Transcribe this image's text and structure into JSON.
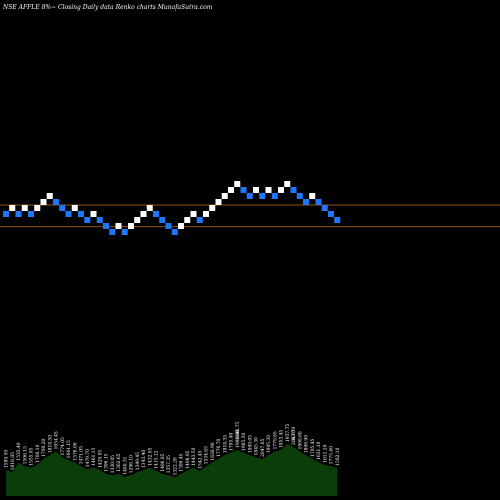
{
  "header": {
    "title": "NSE AFFLE 8%~ Closing Daily data Renko charts MunafaSutra.com"
  },
  "chart_data": {
    "type": "renko",
    "brick_size_label": "8%",
    "colors": {
      "up": "#ffffff",
      "down": "#1e78ff",
      "reference_line": "#c86e1e",
      "volume": "#0b3d0b",
      "background": "#000000"
    },
    "reference_lines": [
      1720,
      1430
    ],
    "bricks": [
      {
        "close": 1600,
        "dir": "down"
      },
      {
        "close": 1680,
        "dir": "up"
      },
      {
        "close": 1600,
        "dir": "down"
      },
      {
        "close": 1680,
        "dir": "up"
      },
      {
        "close": 1600,
        "dir": "down"
      },
      {
        "close": 1680,
        "dir": "up"
      },
      {
        "close": 1760,
        "dir": "up"
      },
      {
        "close": 1840,
        "dir": "up"
      },
      {
        "close": 1760,
        "dir": "down"
      },
      {
        "close": 1680,
        "dir": "down"
      },
      {
        "close": 1600,
        "dir": "down"
      },
      {
        "close": 1680,
        "dir": "up"
      },
      {
        "close": 1600,
        "dir": "down"
      },
      {
        "close": 1520,
        "dir": "down"
      },
      {
        "close": 1600,
        "dir": "up"
      },
      {
        "close": 1520,
        "dir": "down"
      },
      {
        "close": 1440,
        "dir": "down"
      },
      {
        "close": 1360,
        "dir": "down"
      },
      {
        "close": 1440,
        "dir": "up"
      },
      {
        "close": 1360,
        "dir": "down"
      },
      {
        "close": 1440,
        "dir": "up"
      },
      {
        "close": 1520,
        "dir": "up"
      },
      {
        "close": 1600,
        "dir": "up"
      },
      {
        "close": 1680,
        "dir": "up"
      },
      {
        "close": 1600,
        "dir": "down"
      },
      {
        "close": 1520,
        "dir": "down"
      },
      {
        "close": 1440,
        "dir": "down"
      },
      {
        "close": 1360,
        "dir": "down"
      },
      {
        "close": 1440,
        "dir": "up"
      },
      {
        "close": 1520,
        "dir": "up"
      },
      {
        "close": 1600,
        "dir": "up"
      },
      {
        "close": 1520,
        "dir": "down"
      },
      {
        "close": 1600,
        "dir": "up"
      },
      {
        "close": 1680,
        "dir": "up"
      },
      {
        "close": 1760,
        "dir": "up"
      },
      {
        "close": 1840,
        "dir": "up"
      },
      {
        "close": 1920,
        "dir": "up"
      },
      {
        "close": 2000,
        "dir": "up"
      },
      {
        "close": 1920,
        "dir": "down"
      },
      {
        "close": 1840,
        "dir": "down"
      },
      {
        "close": 1920,
        "dir": "up"
      },
      {
        "close": 1840,
        "dir": "down"
      },
      {
        "close": 1920,
        "dir": "up"
      },
      {
        "close": 1840,
        "dir": "down"
      },
      {
        "close": 1920,
        "dir": "up"
      },
      {
        "close": 2000,
        "dir": "up"
      },
      {
        "close": 1920,
        "dir": "down"
      },
      {
        "close": 1840,
        "dir": "down"
      },
      {
        "close": 1760,
        "dir": "down"
      },
      {
        "close": 1840,
        "dir": "up"
      },
      {
        "close": 1760,
        "dir": "down"
      },
      {
        "close": 1680,
        "dir": "down"
      },
      {
        "close": 1600,
        "dir": "down"
      },
      {
        "close": 1520,
        "dir": "down"
      }
    ],
    "volume": [
      35,
      32,
      45,
      40,
      38,
      42,
      50,
      55,
      60,
      52,
      48,
      45,
      40,
      36,
      38,
      35,
      30,
      28,
      30,
      26,
      28,
      32,
      35,
      38,
      34,
      30,
      28,
      25,
      30,
      34,
      38,
      34,
      40,
      45,
      50,
      55,
      58,
      62,
      58,
      55,
      52,
      50,
      55,
      60,
      62,
      70,
      66,
      60,
      55,
      50,
      46,
      42,
      40,
      38
    ],
    "bottom_labels": [
      "1589.50",
      "1616.05",
      "1535.40",
      "1596.15",
      "1555.05",
      "1706.10",
      "1709.20",
      "1818.50",
      "1654.45",
      "1774.05",
      "1641.15",
      "1576.00",
      "1471.05",
      "1479.70",
      "1461.15",
      "1429.95",
      "1396.15",
      "1330.05",
      "1302.65",
      "1400.31",
      "1296.10",
      "1349.45",
      "1343.40",
      "1432.05",
      "1415.12",
      "1406.85",
      "1357.35",
      "1322.20",
      "1390.45",
      "1498.05",
      "1443.50",
      "1542.45",
      "1534.65",
      "1630.90",
      "1776.70",
      "1818.35",
      "1795.40",
      "1990.00",
      "1985.30",
      "1900.05",
      "1845.30",
      "2047.65",
      "1905.30",
      "1779.65",
      "1853.45",
      "1937.75",
      "2043.70",
      "1908.60",
      "1806.90",
      "1705.45",
      "1631.10",
      "1611.20",
      "1775.40",
      "1582.10"
    ],
    "annotation_labels": [
      "1846.75",
      "8.70"
    ]
  }
}
